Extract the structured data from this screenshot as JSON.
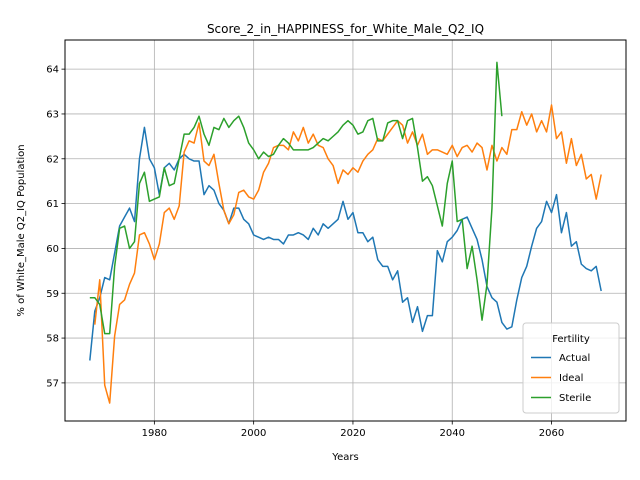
{
  "chart_data": {
    "type": "line",
    "title": "Score_2_in_HAPPINESS_for_White_Male_Q2_IQ",
    "xlabel": "Years",
    "ylabel": "% of White_Male Q2_IQ Population",
    "xlim": [
      1962,
      2075
    ],
    "ylim": [
      56.15,
      64.65
    ],
    "x_ticks": [
      1980,
      2000,
      2020,
      2040,
      2060
    ],
    "y_ticks": [
      57,
      58,
      59,
      60,
      61,
      62,
      63,
      64
    ],
    "grid": true,
    "legend": {
      "title": "Fertility",
      "placement": "lower-right"
    },
    "series": [
      {
        "name": "Actual",
        "color": "#1f77b4",
        "points": [
          [
            1967,
            57.5
          ],
          [
            1968,
            58.6
          ],
          [
            1969,
            58.9
          ],
          [
            1970,
            59.35
          ],
          [
            1971,
            59.3
          ],
          [
            1972,
            59.9
          ],
          [
            1973,
            60.5
          ],
          [
            1974,
            60.7
          ],
          [
            1975,
            60.9
          ],
          [
            1976,
            60.6
          ],
          [
            1977,
            62.0
          ],
          [
            1978,
            62.7
          ],
          [
            1979,
            62.0
          ],
          [
            1980,
            61.8
          ],
          [
            1981,
            61.2
          ],
          [
            1982,
            61.8
          ],
          [
            1983,
            61.9
          ],
          [
            1984,
            61.75
          ],
          [
            1985,
            62.0
          ],
          [
            1986,
            62.1
          ],
          [
            1987,
            62.0
          ],
          [
            1988,
            61.95
          ],
          [
            1989,
            61.95
          ],
          [
            1990,
            61.2
          ],
          [
            1991,
            61.4
          ],
          [
            1992,
            61.3
          ],
          [
            1993,
            61.0
          ],
          [
            1994,
            60.85
          ],
          [
            1995,
            60.55
          ],
          [
            1996,
            60.9
          ],
          [
            1997,
            60.9
          ],
          [
            1998,
            60.65
          ],
          [
            1999,
            60.55
          ],
          [
            2000,
            60.3
          ],
          [
            2001,
            60.25
          ],
          [
            2002,
            60.2
          ],
          [
            2003,
            60.25
          ],
          [
            2004,
            60.2
          ],
          [
            2005,
            60.2
          ],
          [
            2006,
            60.1
          ],
          [
            2007,
            60.3
          ],
          [
            2008,
            60.3
          ],
          [
            2009,
            60.35
          ],
          [
            2010,
            60.3
          ],
          [
            2011,
            60.2
          ],
          [
            2012,
            60.45
          ],
          [
            2013,
            60.3
          ],
          [
            2014,
            60.55
          ],
          [
            2015,
            60.45
          ],
          [
            2016,
            60.55
          ],
          [
            2017,
            60.65
          ],
          [
            2018,
            61.05
          ],
          [
            2019,
            60.65
          ],
          [
            2020,
            60.8
          ],
          [
            2021,
            60.35
          ],
          [
            2022,
            60.35
          ],
          [
            2023,
            60.15
          ],
          [
            2024,
            60.25
          ],
          [
            2025,
            59.75
          ],
          [
            2026,
            59.6
          ],
          [
            2027,
            59.6
          ],
          [
            2028,
            59.3
          ],
          [
            2029,
            59.5
          ],
          [
            2030,
            58.8
          ],
          [
            2031,
            58.9
          ],
          [
            2032,
            58.35
          ],
          [
            2033,
            58.7
          ],
          [
            2034,
            58.15
          ],
          [
            2035,
            58.5
          ],
          [
            2036,
            58.5
          ],
          [
            2037,
            59.95
          ],
          [
            2038,
            59.7
          ],
          [
            2039,
            60.15
          ],
          [
            2040,
            60.25
          ],
          [
            2041,
            60.4
          ],
          [
            2042,
            60.65
          ],
          [
            2043,
            60.7
          ],
          [
            2044,
            60.45
          ],
          [
            2045,
            60.2
          ],
          [
            2046,
            59.75
          ],
          [
            2047,
            59.15
          ],
          [
            2048,
            58.9
          ],
          [
            2049,
            58.8
          ],
          [
            2050,
            58.35
          ],
          [
            2051,
            58.2
          ],
          [
            2052,
            58.25
          ],
          [
            2053,
            58.85
          ],
          [
            2054,
            59.35
          ],
          [
            2055,
            59.6
          ],
          [
            2056,
            60.05
          ],
          [
            2057,
            60.45
          ],
          [
            2058,
            60.6
          ],
          [
            2059,
            61.05
          ],
          [
            2060,
            60.8
          ],
          [
            2061,
            61.2
          ],
          [
            2062,
            60.35
          ],
          [
            2063,
            60.8
          ],
          [
            2064,
            60.05
          ],
          [
            2065,
            60.15
          ],
          [
            2066,
            59.65
          ],
          [
            2067,
            59.55
          ],
          [
            2068,
            59.5
          ],
          [
            2069,
            59.6
          ],
          [
            2070,
            59.05
          ]
        ]
      },
      {
        "name": "Ideal",
        "color": "#ff7f0e",
        "points": [
          [
            1968,
            58.3
          ],
          [
            1969,
            59.3
          ],
          [
            1970,
            56.95
          ],
          [
            1971,
            56.55
          ],
          [
            1972,
            58.05
          ],
          [
            1973,
            58.75
          ],
          [
            1974,
            58.85
          ],
          [
            1975,
            59.2
          ],
          [
            1976,
            59.45
          ],
          [
            1977,
            60.3
          ],
          [
            1978,
            60.35
          ],
          [
            1979,
            60.1
          ],
          [
            1980,
            59.75
          ],
          [
            1981,
            60.1
          ],
          [
            1982,
            60.8
          ],
          [
            1983,
            60.9
          ],
          [
            1984,
            60.65
          ],
          [
            1985,
            60.95
          ],
          [
            1986,
            62.15
          ],
          [
            1987,
            62.4
          ],
          [
            1988,
            62.35
          ],
          [
            1989,
            62.8
          ],
          [
            1990,
            61.95
          ],
          [
            1991,
            61.85
          ],
          [
            1992,
            62.1
          ],
          [
            1993,
            61.45
          ],
          [
            1994,
            60.85
          ],
          [
            1995,
            60.55
          ],
          [
            1996,
            60.75
          ],
          [
            1997,
            61.25
          ],
          [
            1998,
            61.3
          ],
          [
            1999,
            61.15
          ],
          [
            2000,
            61.1
          ],
          [
            2001,
            61.3
          ],
          [
            2002,
            61.7
          ],
          [
            2003,
            61.9
          ],
          [
            2004,
            62.25
          ],
          [
            2005,
            62.3
          ],
          [
            2006,
            62.3
          ],
          [
            2007,
            62.2
          ],
          [
            2008,
            62.6
          ],
          [
            2009,
            62.4
          ],
          [
            2010,
            62.7
          ],
          [
            2011,
            62.35
          ],
          [
            2012,
            62.55
          ],
          [
            2013,
            62.3
          ],
          [
            2014,
            62.25
          ],
          [
            2015,
            62.0
          ],
          [
            2016,
            61.85
          ],
          [
            2017,
            61.45
          ],
          [
            2018,
            61.75
          ],
          [
            2019,
            61.65
          ],
          [
            2020,
            61.8
          ],
          [
            2021,
            61.7
          ],
          [
            2022,
            61.95
          ],
          [
            2023,
            62.1
          ],
          [
            2024,
            62.2
          ],
          [
            2025,
            62.45
          ],
          [
            2026,
            62.4
          ],
          [
            2027,
            62.55
          ],
          [
            2028,
            62.7
          ],
          [
            2029,
            62.85
          ],
          [
            2030,
            62.75
          ],
          [
            2031,
            62.35
          ],
          [
            2032,
            62.6
          ],
          [
            2033,
            62.3
          ],
          [
            2034,
            62.55
          ],
          [
            2035,
            62.1
          ],
          [
            2036,
            62.2
          ],
          [
            2037,
            62.2
          ],
          [
            2038,
            62.15
          ],
          [
            2039,
            62.1
          ],
          [
            2040,
            62.3
          ],
          [
            2041,
            62.05
          ],
          [
            2042,
            62.25
          ],
          [
            2043,
            62.3
          ],
          [
            2044,
            62.15
          ],
          [
            2045,
            62.35
          ],
          [
            2046,
            62.25
          ],
          [
            2047,
            61.75
          ],
          [
            2048,
            62.3
          ],
          [
            2049,
            61.95
          ],
          [
            2050,
            62.25
          ],
          [
            2051,
            62.1
          ],
          [
            2052,
            62.65
          ],
          [
            2053,
            62.65
          ],
          [
            2054,
            63.05
          ],
          [
            2055,
            62.75
          ],
          [
            2056,
            63.0
          ],
          [
            2057,
            62.6
          ],
          [
            2058,
            62.85
          ],
          [
            2059,
            62.6
          ],
          [
            2060,
            63.2
          ],
          [
            2061,
            62.45
          ],
          [
            2062,
            62.6
          ],
          [
            2063,
            61.9
          ],
          [
            2064,
            62.45
          ],
          [
            2065,
            61.85
          ],
          [
            2066,
            62.1
          ],
          [
            2067,
            61.55
          ],
          [
            2068,
            61.65
          ],
          [
            2069,
            61.1
          ],
          [
            2070,
            61.65
          ]
        ]
      },
      {
        "name": "Sterile",
        "color": "#2ca02c",
        "points": [
          [
            1967,
            58.9
          ],
          [
            1968,
            58.9
          ],
          [
            1969,
            58.75
          ],
          [
            1970,
            58.1
          ],
          [
            1971,
            58.1
          ],
          [
            1972,
            59.6
          ],
          [
            1973,
            60.45
          ],
          [
            1974,
            60.5
          ],
          [
            1975,
            60.0
          ],
          [
            1976,
            60.15
          ],
          [
            1977,
            61.45
          ],
          [
            1978,
            61.7
          ],
          [
            1979,
            61.05
          ],
          [
            1980,
            61.1
          ],
          [
            1981,
            61.15
          ],
          [
            1982,
            61.8
          ],
          [
            1983,
            61.4
          ],
          [
            1984,
            61.45
          ],
          [
            1985,
            62.0
          ],
          [
            1986,
            62.55
          ],
          [
            1987,
            62.55
          ],
          [
            1988,
            62.7
          ],
          [
            1989,
            62.95
          ],
          [
            1990,
            62.55
          ],
          [
            1991,
            62.3
          ],
          [
            1992,
            62.7
          ],
          [
            1993,
            62.65
          ],
          [
            1994,
            62.9
          ],
          [
            1995,
            62.7
          ],
          [
            1996,
            62.85
          ],
          [
            1997,
            62.95
          ],
          [
            1998,
            62.7
          ],
          [
            1999,
            62.35
          ],
          [
            2000,
            62.2
          ],
          [
            2001,
            62.0
          ],
          [
            2002,
            62.15
          ],
          [
            2003,
            62.05
          ],
          [
            2004,
            62.1
          ],
          [
            2005,
            62.3
          ],
          [
            2006,
            62.45
          ],
          [
            2007,
            62.35
          ],
          [
            2008,
            62.2
          ],
          [
            2009,
            62.2
          ],
          [
            2010,
            62.2
          ],
          [
            2011,
            62.2
          ],
          [
            2012,
            62.25
          ],
          [
            2013,
            62.35
          ],
          [
            2014,
            62.45
          ],
          [
            2015,
            62.4
          ],
          [
            2016,
            62.5
          ],
          [
            2017,
            62.6
          ],
          [
            2018,
            62.75
          ],
          [
            2019,
            62.85
          ],
          [
            2020,
            62.75
          ],
          [
            2021,
            62.55
          ],
          [
            2022,
            62.6
          ],
          [
            2023,
            62.85
          ],
          [
            2024,
            62.9
          ],
          [
            2025,
            62.4
          ],
          [
            2026,
            62.4
          ],
          [
            2027,
            62.8
          ],
          [
            2028,
            62.85
          ],
          [
            2029,
            62.85
          ],
          [
            2030,
            62.45
          ],
          [
            2031,
            62.85
          ],
          [
            2032,
            62.9
          ],
          [
            2033,
            62.25
          ],
          [
            2034,
            61.5
          ],
          [
            2035,
            61.6
          ],
          [
            2036,
            61.4
          ],
          [
            2037,
            60.95
          ],
          [
            2038,
            60.5
          ],
          [
            2039,
            61.45
          ],
          [
            2040,
            61.95
          ],
          [
            2041,
            60.6
          ],
          [
            2042,
            60.65
          ],
          [
            2043,
            59.55
          ],
          [
            2044,
            60.05
          ],
          [
            2045,
            59.3
          ],
          [
            2046,
            58.4
          ],
          [
            2047,
            59.2
          ],
          [
            2048,
            60.9
          ],
          [
            2049,
            64.15
          ],
          [
            2050,
            62.95
          ]
        ]
      }
    ]
  }
}
